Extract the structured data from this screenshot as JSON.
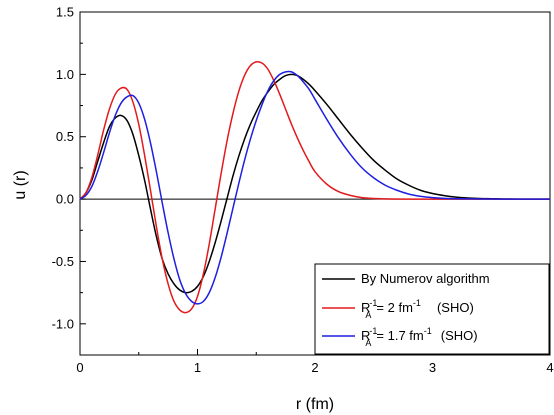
{
  "chart_data": {
    "type": "line",
    "xlabel": "r (fm)",
    "ylabel": "u (r)",
    "xlim": [
      0,
      4
    ],
    "ylim": [
      -1.25,
      1.5
    ],
    "x_ticks": [
      0,
      1,
      2,
      3,
      4
    ],
    "x_tick_labels": [
      "0",
      "1",
      "2",
      "3",
      "4"
    ],
    "y_ticks": [
      -1.0,
      -0.5,
      0.0,
      0.5,
      1.0,
      1.5
    ],
    "y_tick_labels": [
      "-1.0",
      "-0.5",
      "0.0",
      "0.5",
      "1.0",
      "1.5"
    ],
    "grid": false,
    "legend_position": "bottom-right",
    "zero_line": true,
    "series": [
      {
        "name": "By Numerov algorithm",
        "color": "#000000",
        "legend": {
          "main": "By Numerov algorithm"
        },
        "points": [
          [
            0,
            0
          ],
          [
            0.05,
            0.05
          ],
          [
            0.1,
            0.15
          ],
          [
            0.15,
            0.3
          ],
          [
            0.2,
            0.45
          ],
          [
            0.25,
            0.58
          ],
          [
            0.3,
            0.65
          ],
          [
            0.35,
            0.67
          ],
          [
            0.4,
            0.63
          ],
          [
            0.45,
            0.52
          ],
          [
            0.5,
            0.35
          ],
          [
            0.55,
            0.15
          ],
          [
            0.6,
            -0.08
          ],
          [
            0.65,
            -0.3
          ],
          [
            0.7,
            -0.48
          ],
          [
            0.75,
            -0.6
          ],
          [
            0.8,
            -0.68
          ],
          [
            0.85,
            -0.73
          ],
          [
            0.9,
            -0.75
          ],
          [
            0.95,
            -0.74
          ],
          [
            1.0,
            -0.7
          ],
          [
            1.05,
            -0.62
          ],
          [
            1.1,
            -0.5
          ],
          [
            1.15,
            -0.35
          ],
          [
            1.2,
            -0.18
          ],
          [
            1.25,
            0.0
          ],
          [
            1.3,
            0.18
          ],
          [
            1.35,
            0.34
          ],
          [
            1.4,
            0.48
          ],
          [
            1.45,
            0.6
          ],
          [
            1.5,
            0.7
          ],
          [
            1.55,
            0.79
          ],
          [
            1.6,
            0.86
          ],
          [
            1.65,
            0.92
          ],
          [
            1.7,
            0.96
          ],
          [
            1.75,
            0.99
          ],
          [
            1.8,
            1.0
          ],
          [
            1.85,
            0.99
          ],
          [
            1.9,
            0.96
          ],
          [
            1.95,
            0.92
          ],
          [
            2.0,
            0.87
          ],
          [
            2.1,
            0.76
          ],
          [
            2.2,
            0.64
          ],
          [
            2.3,
            0.52
          ],
          [
            2.4,
            0.41
          ],
          [
            2.5,
            0.31
          ],
          [
            2.6,
            0.23
          ],
          [
            2.7,
            0.16
          ],
          [
            2.8,
            0.11
          ],
          [
            2.9,
            0.07
          ],
          [
            3.0,
            0.045
          ],
          [
            3.1,
            0.028
          ],
          [
            3.2,
            0.016
          ],
          [
            3.3,
            0.009
          ],
          [
            3.4,
            0.005
          ],
          [
            3.5,
            0.003
          ],
          [
            3.6,
            0.001
          ],
          [
            3.8,
            0.0
          ],
          [
            4.0,
            0.0
          ]
        ]
      },
      {
        "name": "R_A^-1 = 2 fm^-1 (SHO)",
        "color": "#e31a1c",
        "legend": {
          "R": "R",
          "sub": "A",
          "sup": "-1",
          "mid": "= 2 fm",
          "mid_sup": "-1",
          "tail": "(SHO)"
        },
        "points": [
          [
            0,
            0
          ],
          [
            0.05,
            0.05
          ],
          [
            0.1,
            0.17
          ],
          [
            0.15,
            0.35
          ],
          [
            0.2,
            0.55
          ],
          [
            0.25,
            0.72
          ],
          [
            0.3,
            0.84
          ],
          [
            0.35,
            0.89
          ],
          [
            0.4,
            0.88
          ],
          [
            0.45,
            0.78
          ],
          [
            0.5,
            0.6
          ],
          [
            0.55,
            0.35
          ],
          [
            0.6,
            0.07
          ],
          [
            0.65,
            -0.22
          ],
          [
            0.7,
            -0.48
          ],
          [
            0.75,
            -0.68
          ],
          [
            0.8,
            -0.82
          ],
          [
            0.85,
            -0.89
          ],
          [
            0.9,
            -0.91
          ],
          [
            0.95,
            -0.88
          ],
          [
            1.0,
            -0.78
          ],
          [
            1.05,
            -0.6
          ],
          [
            1.1,
            -0.36
          ],
          [
            1.15,
            -0.08
          ],
          [
            1.2,
            0.2
          ],
          [
            1.25,
            0.46
          ],
          [
            1.3,
            0.68
          ],
          [
            1.35,
            0.86
          ],
          [
            1.4,
            0.99
          ],
          [
            1.45,
            1.07
          ],
          [
            1.5,
            1.1
          ],
          [
            1.55,
            1.09
          ],
          [
            1.6,
            1.04
          ],
          [
            1.65,
            0.95
          ],
          [
            1.7,
            0.84
          ],
          [
            1.75,
            0.72
          ],
          [
            1.8,
            0.6
          ],
          [
            1.85,
            0.49
          ],
          [
            1.9,
            0.39
          ],
          [
            1.95,
            0.3
          ],
          [
            2.0,
            0.22
          ],
          [
            2.1,
            0.12
          ],
          [
            2.2,
            0.06
          ],
          [
            2.3,
            0.03
          ],
          [
            2.4,
            0.012
          ],
          [
            2.5,
            0.005
          ],
          [
            2.6,
            0.002
          ],
          [
            2.8,
            0.0
          ],
          [
            4.0,
            0.0
          ]
        ]
      },
      {
        "name": "R_A^-1 = 1.7 fm^-1 (SHO)",
        "color": "#1f1fe0",
        "legend": {
          "R": "R",
          "sub": "A",
          "sup": "-1",
          "mid": "= 1.7 fm",
          "mid_sup": "-1",
          "tail": "(SHO)"
        },
        "points": [
          [
            0,
            0
          ],
          [
            0.05,
            0.03
          ],
          [
            0.1,
            0.1
          ],
          [
            0.15,
            0.22
          ],
          [
            0.2,
            0.37
          ],
          [
            0.25,
            0.53
          ],
          [
            0.3,
            0.67
          ],
          [
            0.35,
            0.77
          ],
          [
            0.4,
            0.82
          ],
          [
            0.45,
            0.83
          ],
          [
            0.5,
            0.77
          ],
          [
            0.55,
            0.64
          ],
          [
            0.6,
            0.45
          ],
          [
            0.65,
            0.22
          ],
          [
            0.7,
            -0.03
          ],
          [
            0.75,
            -0.27
          ],
          [
            0.8,
            -0.48
          ],
          [
            0.85,
            -0.65
          ],
          [
            0.9,
            -0.76
          ],
          [
            0.95,
            -0.82
          ],
          [
            1.0,
            -0.84
          ],
          [
            1.05,
            -0.82
          ],
          [
            1.1,
            -0.75
          ],
          [
            1.15,
            -0.63
          ],
          [
            1.2,
            -0.47
          ],
          [
            1.25,
            -0.28
          ],
          [
            1.3,
            -0.08
          ],
          [
            1.35,
            0.12
          ],
          [
            1.4,
            0.31
          ],
          [
            1.45,
            0.48
          ],
          [
            1.5,
            0.63
          ],
          [
            1.55,
            0.76
          ],
          [
            1.6,
            0.87
          ],
          [
            1.65,
            0.95
          ],
          [
            1.7,
            1.0
          ],
          [
            1.75,
            1.02
          ],
          [
            1.8,
            1.02
          ],
          [
            1.85,
            0.99
          ],
          [
            1.9,
            0.94
          ],
          [
            1.95,
            0.88
          ],
          [
            2.0,
            0.8
          ],
          [
            2.1,
            0.64
          ],
          [
            2.2,
            0.49
          ],
          [
            2.3,
            0.36
          ],
          [
            2.4,
            0.25
          ],
          [
            2.5,
            0.17
          ],
          [
            2.6,
            0.11
          ],
          [
            2.7,
            0.07
          ],
          [
            2.8,
            0.04
          ],
          [
            2.9,
            0.022
          ],
          [
            3.0,
            0.012
          ],
          [
            3.1,
            0.006
          ],
          [
            3.2,
            0.003
          ],
          [
            3.4,
            0.001
          ],
          [
            3.6,
            0.0
          ],
          [
            4.0,
            0.0
          ]
        ]
      }
    ]
  }
}
